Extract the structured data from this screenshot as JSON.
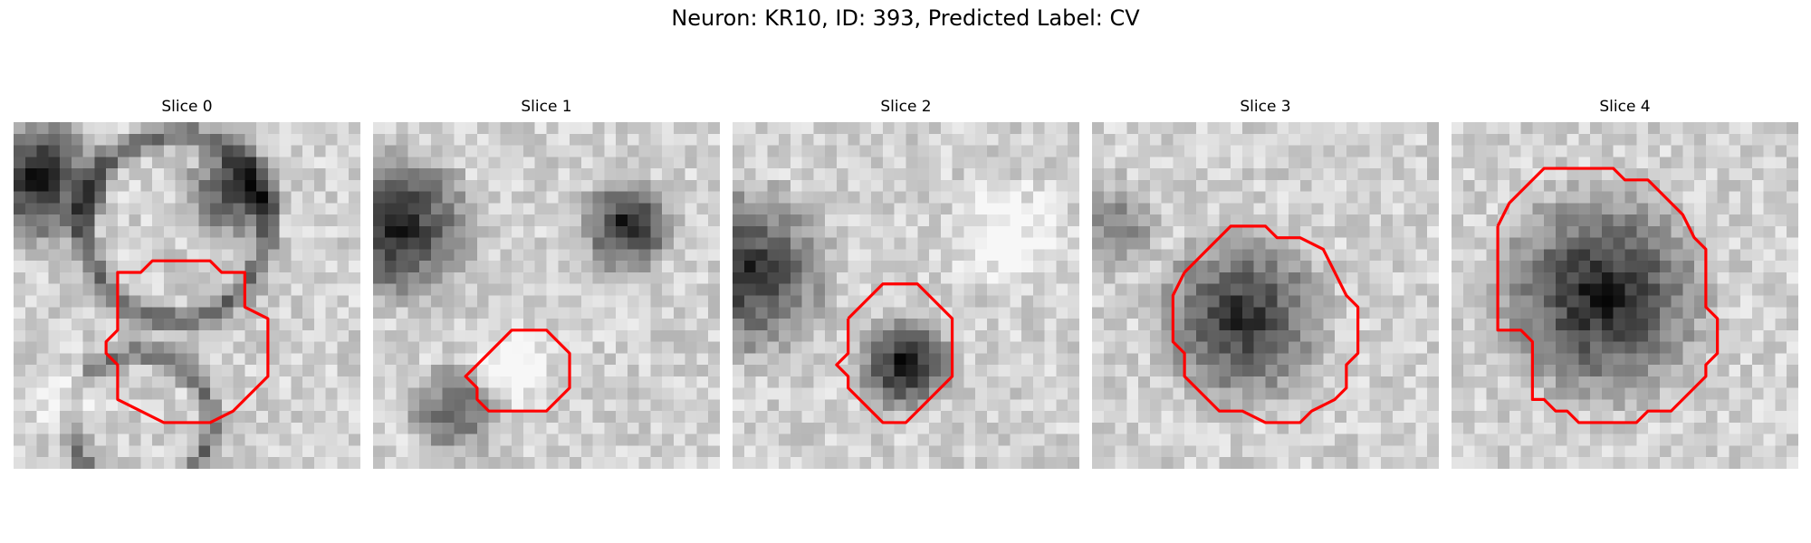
{
  "figure": {
    "title": "Neuron: KR10, ID: 393, Predicted Label: CV"
  },
  "panels": [
    {
      "title": "Slice 0",
      "seed": 11,
      "contour_color": "#ff0000",
      "features": [
        {
          "cx": 2,
          "cy": 5,
          "r": 7,
          "dark": 0.55
        },
        {
          "cx": 19,
          "cy": 6,
          "r": 5,
          "dark": 0.45
        },
        {
          "cx": 14,
          "cy": 9,
          "r": 8,
          "ring": 0.45
        },
        {
          "cx": 5,
          "cy": 24,
          "r": 4,
          "light": 0.3
        },
        {
          "cx": 11,
          "cy": 26,
          "r": 6,
          "ring": 0.4
        }
      ],
      "contour": [
        [
          9,
          14
        ],
        [
          9,
          13
        ],
        [
          11,
          13
        ],
        [
          12,
          12
        ],
        [
          17,
          12
        ],
        [
          18,
          13
        ],
        [
          20,
          13
        ],
        [
          20,
          16
        ],
        [
          22,
          17
        ],
        [
          22,
          22
        ],
        [
          20,
          24
        ],
        [
          19,
          25
        ],
        [
          17,
          26
        ],
        [
          13,
          26
        ],
        [
          11,
          25
        ],
        [
          9,
          24
        ],
        [
          9,
          21
        ],
        [
          8,
          20
        ],
        [
          8,
          19
        ],
        [
          9,
          18
        ],
        [
          9,
          14
        ]
      ]
    },
    {
      "title": "Slice 1",
      "seed": 23,
      "contour_color": "#ff0000",
      "features": [
        {
          "cx": 2,
          "cy": 9,
          "r": 8,
          "dark": 0.55
        },
        {
          "cx": 22,
          "cy": 9,
          "r": 5,
          "dark": 0.55
        },
        {
          "cx": 7,
          "cy": 25,
          "r": 5,
          "dark": 0.35
        },
        {
          "cx": 12,
          "cy": 21,
          "r": 4,
          "light": 0.3
        }
      ],
      "contour": [
        [
          10,
          20
        ],
        [
          11,
          19
        ],
        [
          12,
          18
        ],
        [
          15,
          18
        ],
        [
          16,
          19
        ],
        [
          17,
          20
        ],
        [
          17,
          23
        ],
        [
          16,
          24
        ],
        [
          15,
          25
        ],
        [
          10,
          25
        ],
        [
          9,
          24
        ],
        [
          9,
          23
        ],
        [
          8,
          22
        ],
        [
          9,
          21
        ],
        [
          10,
          20
        ]
      ]
    },
    {
      "title": "Slice 2",
      "seed": 37,
      "contour_color": "#ff0000",
      "features": [
        {
          "cx": 1,
          "cy": 13,
          "r": 9,
          "dark": 0.5
        },
        {
          "cx": 15,
          "cy": 21,
          "r": 5,
          "dark": 0.6
        },
        {
          "cx": 24,
          "cy": 10,
          "r": 6,
          "light": 0.2
        }
      ],
      "contour": [
        [
          10,
          17
        ],
        [
          11,
          16
        ],
        [
          12,
          15
        ],
        [
          13,
          14
        ],
        [
          16,
          14
        ],
        [
          17,
          15
        ],
        [
          18,
          16
        ],
        [
          19,
          17
        ],
        [
          19,
          22
        ],
        [
          18,
          23
        ],
        [
          17,
          24
        ],
        [
          16,
          25
        ],
        [
          15,
          26
        ],
        [
          13,
          26
        ],
        [
          12,
          25
        ],
        [
          11,
          24
        ],
        [
          10,
          23
        ],
        [
          10,
          22
        ],
        [
          9,
          21
        ],
        [
          10,
          20
        ],
        [
          10,
          17
        ]
      ]
    },
    {
      "title": "Slice 3",
      "seed": 41,
      "contour_color": "#ff0000",
      "features": [
        {
          "cx": 13,
          "cy": 17,
          "r": 9,
          "dark": 0.5
        },
        {
          "cx": 2,
          "cy": 9,
          "r": 5,
          "dark": 0.25
        }
      ],
      "contour": [
        [
          8,
          13
        ],
        [
          10,
          11
        ],
        [
          11,
          10
        ],
        [
          12,
          9
        ],
        [
          15,
          9
        ],
        [
          16,
          10
        ],
        [
          18,
          10
        ],
        [
          20,
          11
        ],
        [
          21,
          13
        ],
        [
          22,
          15
        ],
        [
          23,
          16
        ],
        [
          23,
          20
        ],
        [
          22,
          21
        ],
        [
          22,
          23
        ],
        [
          21,
          24
        ],
        [
          19,
          25
        ],
        [
          18,
          26
        ],
        [
          15,
          26
        ],
        [
          13,
          25
        ],
        [
          11,
          25
        ],
        [
          10,
          24
        ],
        [
          9,
          23
        ],
        [
          8,
          22
        ],
        [
          8,
          20
        ],
        [
          7,
          19
        ],
        [
          7,
          15
        ],
        [
          8,
          13
        ]
      ]
    },
    {
      "title": "Slice 4",
      "seed": 53,
      "contour_color": "#ff0000",
      "features": [
        {
          "cx": 13,
          "cy": 15,
          "r": 11,
          "dark": 0.55
        }
      ],
      "contour": [
        [
          4,
          9
        ],
        [
          5,
          7
        ],
        [
          6,
          6
        ],
        [
          7,
          5
        ],
        [
          8,
          4
        ],
        [
          14,
          4
        ],
        [
          15,
          5
        ],
        [
          17,
          5
        ],
        [
          18,
          6
        ],
        [
          19,
          7
        ],
        [
          20,
          8
        ],
        [
          21,
          10
        ],
        [
          22,
          11
        ],
        [
          22,
          16
        ],
        [
          23,
          17
        ],
        [
          23,
          20
        ],
        [
          22,
          21
        ],
        [
          22,
          22
        ],
        [
          21,
          23
        ],
        [
          20,
          24
        ],
        [
          19,
          25
        ],
        [
          17,
          25
        ],
        [
          16,
          26
        ],
        [
          11,
          26
        ],
        [
          10,
          25
        ],
        [
          9,
          25
        ],
        [
          8,
          24
        ],
        [
          7,
          24
        ],
        [
          7,
          19
        ],
        [
          6,
          18
        ],
        [
          4,
          18
        ],
        [
          4,
          9
        ]
      ]
    }
  ]
}
